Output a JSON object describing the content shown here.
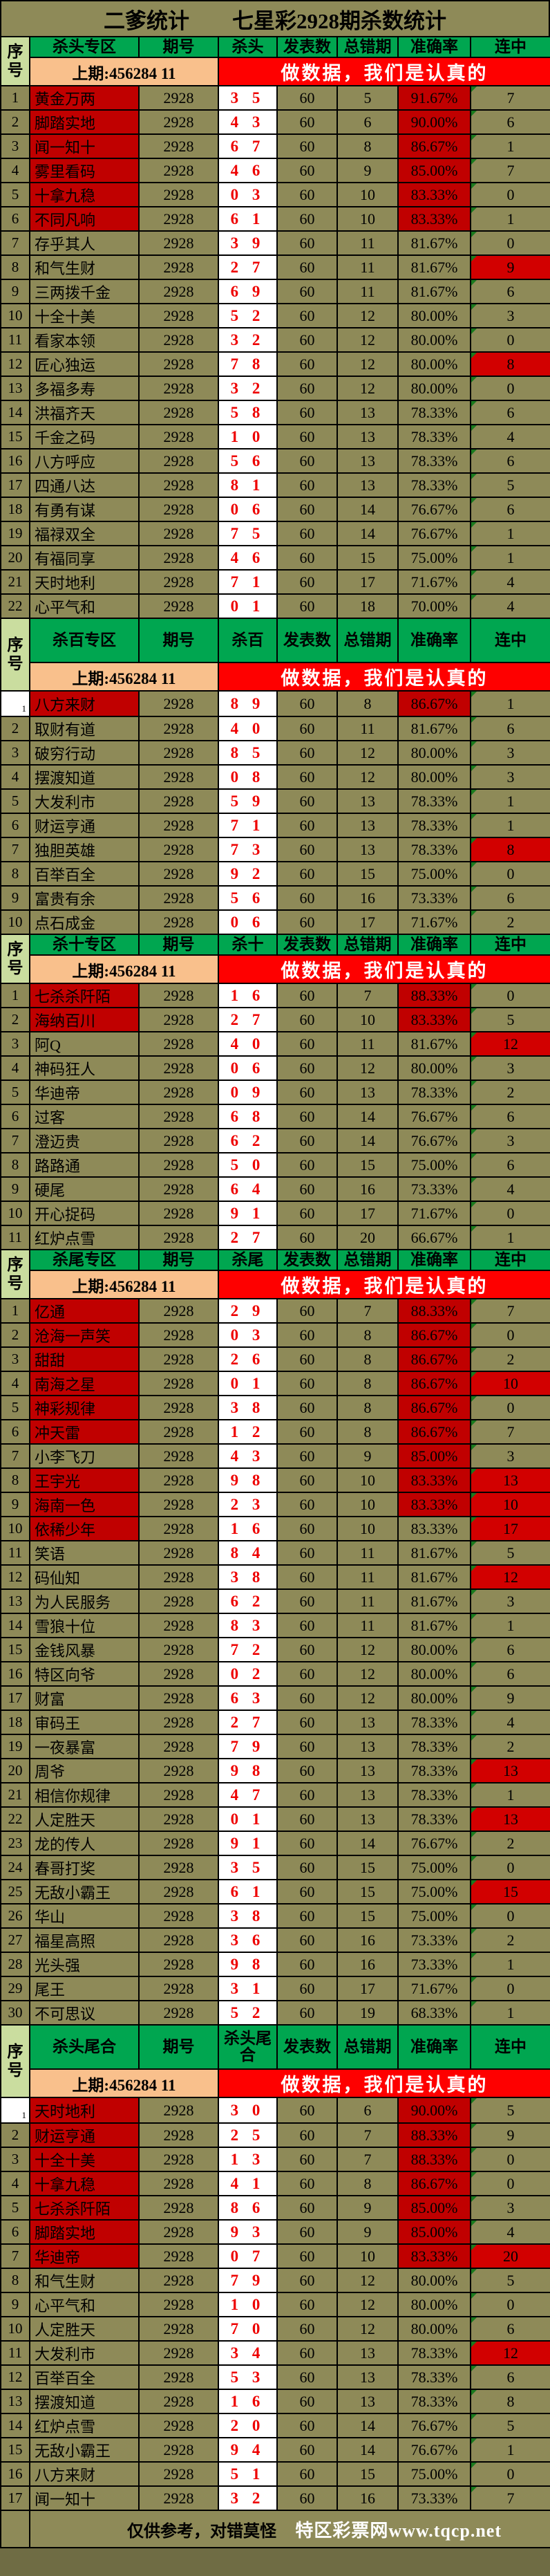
{
  "title": {
    "left": "二爹统计",
    "right": "七星彩2928期杀数统计"
  },
  "period": "2928",
  "published": "60",
  "prev_label": "上期:456284 11",
  "banner_text": "做数据，我们是认真的",
  "columns": {
    "index": "序号",
    "period": "期号",
    "published": "发表数",
    "errors": "总错期",
    "accuracy": "准确率",
    "streak": "连中"
  },
  "colors": {
    "khaki": "#8e8a58",
    "header_green": "#00a650",
    "index_light_green": "#cadd9f",
    "prev_peach": "#f9c08c",
    "banner_red": "#fe0000",
    "highlight_red": "#c00000",
    "streak_red": "#d20000",
    "kill_text_red": "#ee0000",
    "corner_marker_green": "#1a7a1e"
  },
  "sections": [
    {
      "zone": "杀头专区",
      "kill_col": "杀头",
      "tall": false,
      "rows": [
        {
          "n": "1",
          "t": "黄金万两",
          "k": "3 5",
          "e": "5",
          "a": "91.67%",
          "c": "7",
          "f": "NA"
        },
        {
          "n": "2",
          "t": "脚踏实地",
          "k": "4 3",
          "e": "6",
          "a": "90.00%",
          "c": "6",
          "f": "NA"
        },
        {
          "n": "3",
          "t": "闻一知十",
          "k": "6 7",
          "e": "8",
          "a": "86.67%",
          "c": "1",
          "f": "NA"
        },
        {
          "n": "4",
          "t": "雾里看码",
          "k": "4 6",
          "e": "9",
          "a": "85.00%",
          "c": "7",
          "f": "NA"
        },
        {
          "n": "5",
          "t": "十拿九稳",
          "k": "0 3",
          "e": "10",
          "a": "83.33%",
          "c": "0",
          "f": "NA"
        },
        {
          "n": "6",
          "t": "不同凡响",
          "k": "6 1",
          "e": "10",
          "a": "83.33%",
          "c": "1",
          "f": "NA"
        },
        {
          "n": "7",
          "t": "存乎其人",
          "k": "3 9",
          "e": "11",
          "a": "81.67%",
          "c": "0",
          "f": ""
        },
        {
          "n": "8",
          "t": "和气生财",
          "k": "2 7",
          "e": "11",
          "a": "81.67%",
          "c": "9",
          "f": "C"
        },
        {
          "n": "9",
          "t": "三两拨千金",
          "k": "6 9",
          "e": "11",
          "a": "81.67%",
          "c": "6",
          "f": ""
        },
        {
          "n": "10",
          "t": "十全十美",
          "k": "5 2",
          "e": "12",
          "a": "80.00%",
          "c": "3",
          "f": ""
        },
        {
          "n": "11",
          "t": "看家本领",
          "k": "3 2",
          "e": "12",
          "a": "80.00%",
          "c": "0",
          "f": ""
        },
        {
          "n": "12",
          "t": "匠心独运",
          "k": "7 8",
          "e": "12",
          "a": "80.00%",
          "c": "8",
          "f": "C"
        },
        {
          "n": "13",
          "t": "多福多寿",
          "k": "3 2",
          "e": "12",
          "a": "80.00%",
          "c": "0",
          "f": ""
        },
        {
          "n": "14",
          "t": "洪福齐天",
          "k": "5 8",
          "e": "13",
          "a": "78.33%",
          "c": "6",
          "f": ""
        },
        {
          "n": "15",
          "t": "千金之码",
          "k": "1 0",
          "e": "13",
          "a": "78.33%",
          "c": "4",
          "f": ""
        },
        {
          "n": "16",
          "t": "八方呼应",
          "k": "5 6",
          "e": "13",
          "a": "78.33%",
          "c": "6",
          "f": ""
        },
        {
          "n": "17",
          "t": "四通八达",
          "k": "8 1",
          "e": "13",
          "a": "78.33%",
          "c": "5",
          "f": ""
        },
        {
          "n": "18",
          "t": "有勇有谋",
          "k": "0 6",
          "e": "14",
          "a": "76.67%",
          "c": "6",
          "f": ""
        },
        {
          "n": "19",
          "t": "福禄双全",
          "k": "7 5",
          "e": "14",
          "a": "76.67%",
          "c": "1",
          "f": ""
        },
        {
          "n": "20",
          "t": "有福同享",
          "k": "4 6",
          "e": "15",
          "a": "75.00%",
          "c": "1",
          "f": ""
        },
        {
          "n": "21",
          "t": "天时地利",
          "k": "7 1",
          "e": "17",
          "a": "71.67%",
          "c": "4",
          "f": ""
        },
        {
          "n": "22",
          "t": "心平气和",
          "k": "0 1",
          "e": "18",
          "a": "70.00%",
          "c": "4",
          "f": ""
        }
      ]
    },
    {
      "zone": "杀百专区",
      "kill_col": "杀百",
      "tall": true,
      "rows": [
        {
          "n": "1",
          "t": "八方来财",
          "k": "8 9",
          "e": "8",
          "a": "86.67%",
          "c": "1",
          "f": "NAW"
        },
        {
          "n": "2",
          "t": "取财有道",
          "k": "4 0",
          "e": "11",
          "a": "81.67%",
          "c": "6",
          "f": ""
        },
        {
          "n": "3",
          "t": "破穷行动",
          "k": "8 5",
          "e": "12",
          "a": "80.00%",
          "c": "3",
          "f": ""
        },
        {
          "n": "4",
          "t": "摆渡知道",
          "k": "0 8",
          "e": "12",
          "a": "80.00%",
          "c": "3",
          "f": ""
        },
        {
          "n": "5",
          "t": "大发利市",
          "k": "5 9",
          "e": "13",
          "a": "78.33%",
          "c": "1",
          "f": ""
        },
        {
          "n": "6",
          "t": "财运亨通",
          "k": "7 1",
          "e": "13",
          "a": "78.33%",
          "c": "1",
          "f": ""
        },
        {
          "n": "7",
          "t": "独胆英雄",
          "k": "7 3",
          "e": "13",
          "a": "78.33%",
          "c": "8",
          "f": "C"
        },
        {
          "n": "8",
          "t": "百举百全",
          "k": "9 2",
          "e": "15",
          "a": "75.00%",
          "c": "0",
          "f": ""
        },
        {
          "n": "9",
          "t": "富贵有余",
          "k": "5 6",
          "e": "16",
          "a": "73.33%",
          "c": "6",
          "f": ""
        },
        {
          "n": "10",
          "t": "点石成金",
          "k": "0 6",
          "e": "17",
          "a": "71.67%",
          "c": "2",
          "f": ""
        }
      ]
    },
    {
      "zone": "杀十专区",
      "kill_col": "杀十",
      "tall": false,
      "rows": [
        {
          "n": "1",
          "t": "七杀杀阡陌",
          "k": "1 6",
          "e": "7",
          "a": "88.33%",
          "c": "0",
          "f": "NA"
        },
        {
          "n": "2",
          "t": "海纳百川",
          "k": "2 7",
          "e": "10",
          "a": "83.33%",
          "c": "5",
          "f": "NA"
        },
        {
          "n": "3",
          "t": "阿Q",
          "k": "4 0",
          "e": "11",
          "a": "81.67%",
          "c": "12",
          "f": "C"
        },
        {
          "n": "4",
          "t": "神码狂人",
          "k": "0 6",
          "e": "12",
          "a": "80.00%",
          "c": "3",
          "f": ""
        },
        {
          "n": "5",
          "t": "华迪帝",
          "k": "0 9",
          "e": "13",
          "a": "78.33%",
          "c": "2",
          "f": ""
        },
        {
          "n": "6",
          "t": "过客",
          "k": "6 8",
          "e": "14",
          "a": "76.67%",
          "c": "6",
          "f": ""
        },
        {
          "n": "7",
          "t": "澄迈贵",
          "k": "6 2",
          "e": "14",
          "a": "76.67%",
          "c": "3",
          "f": ""
        },
        {
          "n": "8",
          "t": "路路通",
          "k": "5 0",
          "e": "15",
          "a": "75.00%",
          "c": "6",
          "f": ""
        },
        {
          "n": "9",
          "t": "硬尾",
          "k": "6 4",
          "e": "16",
          "a": "73.33%",
          "c": "4",
          "f": ""
        },
        {
          "n": "10",
          "t": "开心捉码",
          "k": "9 1",
          "e": "17",
          "a": "71.67%",
          "c": "0",
          "f": ""
        },
        {
          "n": "11",
          "t": "红炉点雪",
          "k": "2 7",
          "e": "20",
          "a": "66.67%",
          "c": "1",
          "f": ""
        }
      ]
    },
    {
      "zone": "杀尾专区",
      "kill_col": "杀尾",
      "tall": false,
      "rows": [
        {
          "n": "1",
          "t": "亿通",
          "k": "2 9",
          "e": "7",
          "a": "88.33%",
          "c": "7",
          "f": "NA"
        },
        {
          "n": "2",
          "t": "沧海一声笑",
          "k": "0 3",
          "e": "8",
          "a": "86.67%",
          "c": "0",
          "f": "NA"
        },
        {
          "n": "3",
          "t": "甜甜",
          "k": "2 6",
          "e": "8",
          "a": "86.67%",
          "c": "2",
          "f": "NA"
        },
        {
          "n": "4",
          "t": "南海之星",
          "k": "0 1",
          "e": "8",
          "a": "86.67%",
          "c": "10",
          "f": "NAC"
        },
        {
          "n": "5",
          "t": "神彩规律",
          "k": "3 8",
          "e": "8",
          "a": "86.67%",
          "c": "0",
          "f": "NA"
        },
        {
          "n": "6",
          "t": "冲天雷",
          "k": "1 2",
          "e": "8",
          "a": "86.67%",
          "c": "7",
          "f": "NA"
        },
        {
          "n": "7",
          "t": "小李飞刀",
          "k": "4 3",
          "e": "9",
          "a": "85.00%",
          "c": "3",
          "f": "A"
        },
        {
          "n": "8",
          "t": "王宇光",
          "k": "9 8",
          "e": "10",
          "a": "83.33%",
          "c": "13",
          "f": "NAC"
        },
        {
          "n": "9",
          "t": "海南一色",
          "k": "2 3",
          "e": "10",
          "a": "83.33%",
          "c": "10",
          "f": "NAC"
        },
        {
          "n": "10",
          "t": "依稀少年",
          "k": "1 6",
          "e": "10",
          "a": "83.33%",
          "c": "17",
          "f": "NC"
        },
        {
          "n": "11",
          "t": "笑语",
          "k": "8 4",
          "e": "11",
          "a": "81.67%",
          "c": "5",
          "f": ""
        },
        {
          "n": "12",
          "t": "码仙知",
          "k": "3 8",
          "e": "11",
          "a": "81.67%",
          "c": "12",
          "f": "C"
        },
        {
          "n": "13",
          "t": "为人民服务",
          "k": "6 2",
          "e": "11",
          "a": "81.67%",
          "c": "3",
          "f": ""
        },
        {
          "n": "14",
          "t": "雪狼十位",
          "k": "8 3",
          "e": "11",
          "a": "81.67%",
          "c": "1",
          "f": ""
        },
        {
          "n": "15",
          "t": "金钱风暴",
          "k": "7 2",
          "e": "12",
          "a": "80.00%",
          "c": "6",
          "f": ""
        },
        {
          "n": "16",
          "t": "特区向爷",
          "k": "0 2",
          "e": "12",
          "a": "80.00%",
          "c": "6",
          "f": ""
        },
        {
          "n": "17",
          "t": "财富",
          "k": "6 3",
          "e": "12",
          "a": "80.00%",
          "c": "9",
          "f": ""
        },
        {
          "n": "18",
          "t": "审码王",
          "k": "2 7",
          "e": "13",
          "a": "78.33%",
          "c": "4",
          "f": ""
        },
        {
          "n": "19",
          "t": "一夜暴富",
          "k": "7 9",
          "e": "13",
          "a": "78.33%",
          "c": "2",
          "f": ""
        },
        {
          "n": "20",
          "t": "周爷",
          "k": "9 8",
          "e": "13",
          "a": "78.33%",
          "c": "13",
          "f": "C"
        },
        {
          "n": "21",
          "t": "相信你规律",
          "k": "4 7",
          "e": "13",
          "a": "78.33%",
          "c": "1",
          "f": ""
        },
        {
          "n": "22",
          "t": "人定胜天",
          "k": "0 1",
          "e": "13",
          "a": "78.33%",
          "c": "13",
          "f": "C"
        },
        {
          "n": "23",
          "t": "龙的传人",
          "k": "9 1",
          "e": "14",
          "a": "76.67%",
          "c": "2",
          "f": ""
        },
        {
          "n": "24",
          "t": "春哥打奖",
          "k": "3 5",
          "e": "15",
          "a": "75.00%",
          "c": "0",
          "f": ""
        },
        {
          "n": "25",
          "t": "无敌小霸王",
          "k": "6 1",
          "e": "15",
          "a": "75.00%",
          "c": "15",
          "f": "C"
        },
        {
          "n": "26",
          "t": "华山",
          "k": "3 8",
          "e": "15",
          "a": "75.00%",
          "c": "0",
          "f": ""
        },
        {
          "n": "27",
          "t": "福星高照",
          "k": "3 6",
          "e": "16",
          "a": "73.33%",
          "c": "2",
          "f": ""
        },
        {
          "n": "28",
          "t": "光头强",
          "k": "9 8",
          "e": "16",
          "a": "73.33%",
          "c": "1",
          "f": ""
        },
        {
          "n": "29",
          "t": "尾王",
          "k": "3 1",
          "e": "17",
          "a": "71.67%",
          "c": "0",
          "f": ""
        },
        {
          "n": "30",
          "t": "不可思议",
          "k": "5 2",
          "e": "19",
          "a": "68.33%",
          "c": "1",
          "f": ""
        }
      ]
    },
    {
      "zone": "杀头尾合",
      "kill_col": "杀头尾合",
      "tall": true,
      "rows": [
        {
          "n": "1",
          "t": "天时地利",
          "k": "3 0",
          "e": "6",
          "a": "90.00%",
          "c": "5",
          "f": "NAW"
        },
        {
          "n": "2",
          "t": "财运亨通",
          "k": "2 5",
          "e": "7",
          "a": "88.33%",
          "c": "9",
          "f": "NA"
        },
        {
          "n": "3",
          "t": "十全十美",
          "k": "1 3",
          "e": "7",
          "a": "88.33%",
          "c": "0",
          "f": "NA"
        },
        {
          "n": "4",
          "t": "十拿九稳",
          "k": "4 1",
          "e": "8",
          "a": "86.67%",
          "c": "0",
          "f": "NA"
        },
        {
          "n": "5",
          "t": "七杀杀阡陌",
          "k": "8 6",
          "e": "9",
          "a": "85.00%",
          "c": "3",
          "f": "NA"
        },
        {
          "n": "6",
          "t": "脚踏实地",
          "k": "9 3",
          "e": "9",
          "a": "85.00%",
          "c": "4",
          "f": "NA"
        },
        {
          "n": "7",
          "t": "华迪帝",
          "k": "0 7",
          "e": "10",
          "a": "83.33%",
          "c": "20",
          "f": "NAC"
        },
        {
          "n": "8",
          "t": "和气生财",
          "k": "7 9",
          "e": "12",
          "a": "80.00%",
          "c": "5",
          "f": ""
        },
        {
          "n": "9",
          "t": "心平气和",
          "k": "1 0",
          "e": "12",
          "a": "80.00%",
          "c": "0",
          "f": ""
        },
        {
          "n": "10",
          "t": "人定胜天",
          "k": "7 0",
          "e": "12",
          "a": "80.00%",
          "c": "6",
          "f": ""
        },
        {
          "n": "11",
          "t": "大发利市",
          "k": "3 4",
          "e": "13",
          "a": "78.33%",
          "c": "12",
          "f": "C"
        },
        {
          "n": "12",
          "t": "百举百全",
          "k": "5 3",
          "e": "13",
          "a": "78.33%",
          "c": "6",
          "f": ""
        },
        {
          "n": "13",
          "t": "摆渡知道",
          "k": "1 6",
          "e": "13",
          "a": "78.33%",
          "c": "8",
          "f": ""
        },
        {
          "n": "14",
          "t": "红炉点雪",
          "k": "2 0",
          "e": "14",
          "a": "76.67%",
          "c": "5",
          "f": ""
        },
        {
          "n": "15",
          "t": "无敌小霸王",
          "k": "9 4",
          "e": "14",
          "a": "76.67%",
          "c": "1",
          "f": ""
        },
        {
          "n": "16",
          "t": "八方来财",
          "k": "5 1",
          "e": "15",
          "a": "75.00%",
          "c": "0",
          "f": ""
        },
        {
          "n": "17",
          "t": "闻一知十",
          "k": "3 2",
          "e": "16",
          "a": "73.33%",
          "c": "7",
          "f": ""
        }
      ]
    }
  ],
  "footer": {
    "left": "仅供参考，对错莫怪",
    "right": "特区彩票网www.tqcp.net"
  }
}
